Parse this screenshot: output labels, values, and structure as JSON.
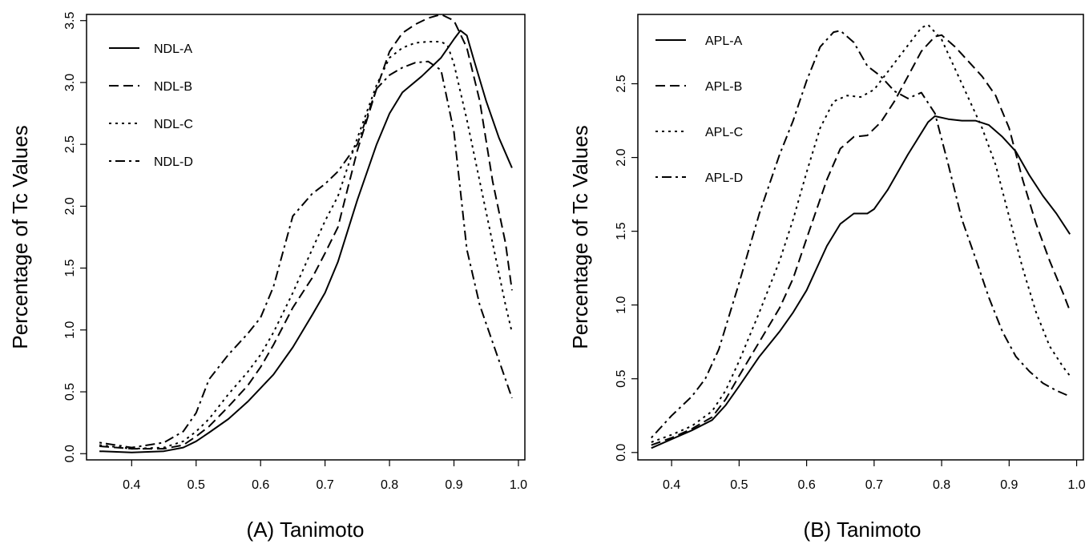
{
  "chart_data": [
    {
      "type": "line",
      "title": "",
      "xlabel": "(A) Tanimoto",
      "ylabel": "Percentage of Tc Values",
      "xlim": [
        0.33,
        1.01
      ],
      "ylim": [
        -0.05,
        3.55
      ],
      "x_ticks": [
        "0.4",
        "0.5",
        "0.6",
        "0.7",
        "0.8",
        "0.9",
        "1.0"
      ],
      "y_ticks": [
        "0.0",
        "0.5",
        "1.0",
        "1.5",
        "2.0",
        "2.5",
        "3.0",
        "3.5"
      ],
      "legend_position": "top-left",
      "grid": false,
      "series": [
        {
          "name": "NDL-A",
          "dash": "solid",
          "x": [
            0.35,
            0.4,
            0.45,
            0.48,
            0.5,
            0.52,
            0.55,
            0.58,
            0.6,
            0.62,
            0.65,
            0.68,
            0.7,
            0.72,
            0.75,
            0.78,
            0.8,
            0.82,
            0.85,
            0.88,
            0.9,
            0.91,
            0.92,
            0.93,
            0.95,
            0.97,
            0.99
          ],
          "y": [
            0.02,
            0.01,
            0.02,
            0.05,
            0.1,
            0.17,
            0.28,
            0.42,
            0.53,
            0.64,
            0.86,
            1.12,
            1.3,
            1.55,
            2.05,
            2.5,
            2.75,
            2.92,
            3.05,
            3.2,
            3.35,
            3.42,
            3.38,
            3.2,
            2.85,
            2.55,
            2.31
          ]
        },
        {
          "name": "NDL-B",
          "dash": "long-dash",
          "x": [
            0.35,
            0.4,
            0.45,
            0.48,
            0.5,
            0.52,
            0.55,
            0.58,
            0.6,
            0.62,
            0.65,
            0.68,
            0.7,
            0.72,
            0.75,
            0.78,
            0.8,
            0.82,
            0.84,
            0.86,
            0.88,
            0.9,
            0.92,
            0.94,
            0.96,
            0.98,
            0.99
          ],
          "y": [
            0.06,
            0.04,
            0.04,
            0.07,
            0.14,
            0.22,
            0.38,
            0.55,
            0.7,
            0.88,
            1.18,
            1.42,
            1.62,
            1.83,
            2.45,
            2.95,
            3.25,
            3.4,
            3.47,
            3.52,
            3.55,
            3.5,
            3.28,
            2.85,
            2.2,
            1.7,
            1.32
          ]
        },
        {
          "name": "NDL-C",
          "dash": "dotted",
          "x": [
            0.35,
            0.4,
            0.45,
            0.48,
            0.5,
            0.52,
            0.55,
            0.58,
            0.6,
            0.62,
            0.65,
            0.68,
            0.7,
            0.72,
            0.75,
            0.78,
            0.8,
            0.82,
            0.84,
            0.86,
            0.88,
            0.89,
            0.9,
            0.92,
            0.94,
            0.96,
            0.98,
            0.99
          ],
          "y": [
            0.07,
            0.04,
            0.05,
            0.1,
            0.18,
            0.28,
            0.48,
            0.66,
            0.8,
            0.98,
            1.3,
            1.65,
            1.88,
            2.08,
            2.55,
            2.98,
            3.2,
            3.28,
            3.32,
            3.33,
            3.33,
            3.3,
            3.15,
            2.7,
            2.2,
            1.7,
            1.2,
            0.98
          ]
        },
        {
          "name": "NDL-D",
          "dash": "dot-dash",
          "x": [
            0.35,
            0.4,
            0.45,
            0.48,
            0.5,
            0.52,
            0.55,
            0.58,
            0.6,
            0.62,
            0.65,
            0.68,
            0.7,
            0.72,
            0.75,
            0.78,
            0.8,
            0.82,
            0.84,
            0.86,
            0.88,
            0.9,
            0.92,
            0.94,
            0.96,
            0.98,
            0.99
          ],
          "y": [
            0.09,
            0.05,
            0.09,
            0.18,
            0.33,
            0.6,
            0.8,
            0.97,
            1.1,
            1.35,
            1.92,
            2.1,
            2.18,
            2.28,
            2.5,
            2.95,
            3.06,
            3.12,
            3.16,
            3.17,
            3.1,
            2.6,
            1.65,
            1.2,
            0.9,
            0.6,
            0.45
          ]
        }
      ]
    },
    {
      "type": "line",
      "title": "",
      "xlabel": "(B) Tanimoto",
      "ylabel": "Percentage of Tc Values",
      "xlim": [
        0.35,
        1.01
      ],
      "ylim": [
        -0.05,
        2.97
      ],
      "x_ticks": [
        "0.4",
        "0.5",
        "0.6",
        "0.7",
        "0.8",
        "0.9",
        "1.0"
      ],
      "y_ticks": [
        "0.0",
        "0.5",
        "1.0",
        "1.5",
        "2.0",
        "2.5"
      ],
      "legend_position": "top-left",
      "grid": false,
      "series": [
        {
          "name": "APL-A",
          "dash": "solid",
          "x": [
            0.37,
            0.4,
            0.43,
            0.46,
            0.48,
            0.5,
            0.53,
            0.56,
            0.58,
            0.6,
            0.63,
            0.65,
            0.67,
            0.69,
            0.7,
            0.72,
            0.75,
            0.78,
            0.79,
            0.81,
            0.83,
            0.85,
            0.87,
            0.89,
            0.91,
            0.93,
            0.95,
            0.97,
            0.99
          ],
          "y": [
            0.03,
            0.09,
            0.15,
            0.22,
            0.32,
            0.45,
            0.65,
            0.82,
            0.95,
            1.1,
            1.4,
            1.55,
            1.62,
            1.62,
            1.65,
            1.78,
            2.02,
            2.24,
            2.28,
            2.26,
            2.25,
            2.25,
            2.22,
            2.14,
            2.04,
            1.88,
            1.74,
            1.62,
            1.48
          ]
        },
        {
          "name": "APL-B",
          "dash": "long-dash",
          "x": [
            0.37,
            0.4,
            0.43,
            0.46,
            0.48,
            0.5,
            0.53,
            0.56,
            0.58,
            0.6,
            0.63,
            0.65,
            0.67,
            0.69,
            0.71,
            0.73,
            0.75,
            0.77,
            0.79,
            0.8,
            0.82,
            0.84,
            0.86,
            0.88,
            0.9,
            0.92,
            0.94,
            0.96,
            0.98,
            0.99
          ],
          "y": [
            0.05,
            0.1,
            0.16,
            0.24,
            0.36,
            0.52,
            0.75,
            0.98,
            1.18,
            1.45,
            1.85,
            2.06,
            2.14,
            2.15,
            2.24,
            2.38,
            2.55,
            2.72,
            2.82,
            2.83,
            2.75,
            2.65,
            2.55,
            2.42,
            2.2,
            1.85,
            1.55,
            1.3,
            1.08,
            0.96
          ]
        },
        {
          "name": "APL-C",
          "dash": "dotted",
          "x": [
            0.37,
            0.4,
            0.43,
            0.46,
            0.48,
            0.5,
            0.53,
            0.56,
            0.58,
            0.6,
            0.62,
            0.64,
            0.66,
            0.68,
            0.7,
            0.72,
            0.74,
            0.76,
            0.77,
            0.78,
            0.8,
            0.82,
            0.84,
            0.86,
            0.88,
            0.9,
            0.92,
            0.94,
            0.96,
            0.98,
            0.99
          ],
          "y": [
            0.07,
            0.12,
            0.18,
            0.28,
            0.42,
            0.62,
            0.95,
            1.3,
            1.58,
            1.9,
            2.2,
            2.38,
            2.42,
            2.41,
            2.46,
            2.58,
            2.7,
            2.82,
            2.88,
            2.9,
            2.8,
            2.6,
            2.4,
            2.2,
            1.95,
            1.6,
            1.25,
            0.95,
            0.72,
            0.58,
            0.52
          ]
        },
        {
          "name": "APL-D",
          "dash": "dot-dash",
          "x": [
            0.37,
            0.4,
            0.43,
            0.45,
            0.47,
            0.5,
            0.53,
            0.56,
            0.58,
            0.6,
            0.62,
            0.64,
            0.65,
            0.67,
            0.69,
            0.71,
            0.73,
            0.75,
            0.77,
            0.79,
            0.81,
            0.83,
            0.85,
            0.87,
            0.89,
            0.91,
            0.93,
            0.95,
            0.97,
            0.99
          ],
          "y": [
            0.1,
            0.25,
            0.38,
            0.5,
            0.7,
            1.15,
            1.62,
            2.02,
            2.25,
            2.52,
            2.75,
            2.85,
            2.86,
            2.78,
            2.62,
            2.55,
            2.45,
            2.4,
            2.44,
            2.3,
            1.95,
            1.58,
            1.32,
            1.05,
            0.82,
            0.65,
            0.55,
            0.47,
            0.42,
            0.38
          ]
        }
      ]
    }
  ]
}
